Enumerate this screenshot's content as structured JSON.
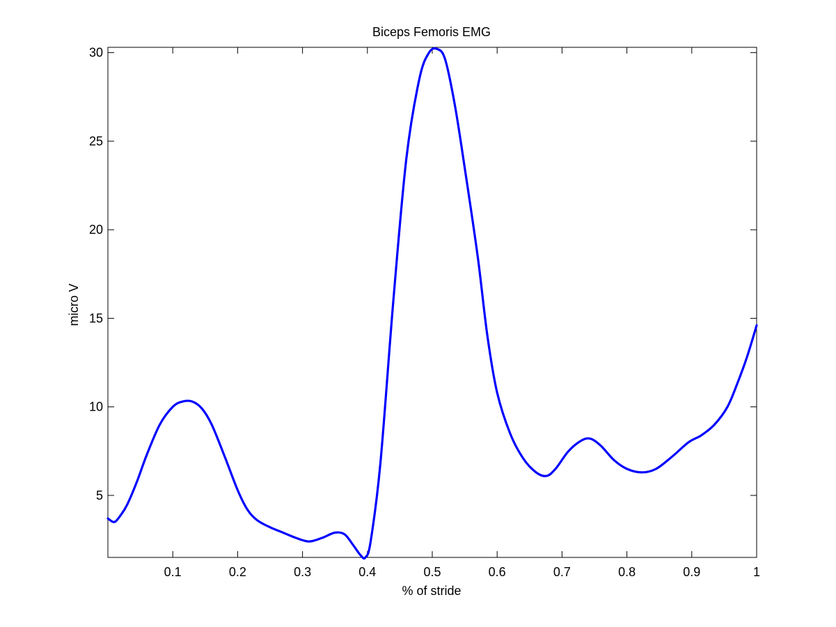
{
  "chart_data": {
    "type": "line",
    "title": "Biceps Femoris EMG",
    "xlabel": "% of stride",
    "ylabel": "micro V",
    "xlim": [
      0,
      1
    ],
    "ylim": [
      1.5,
      30.3
    ],
    "grid": false,
    "xticks": [
      0.1,
      0.2,
      0.3,
      0.4,
      0.5,
      0.6,
      0.7,
      0.8,
      0.9,
      1
    ],
    "xtick_labels": [
      "0.1",
      "0.2",
      "0.3",
      "0.4",
      "0.5",
      "0.6",
      "0.7",
      "0.8",
      "0.9",
      "1"
    ],
    "yticks": [
      5,
      10,
      15,
      20,
      25,
      30
    ],
    "ytick_labels": [
      "5",
      "10",
      "15",
      "20",
      "25",
      "30"
    ],
    "line_color": "#0000ff",
    "series": [
      {
        "x": [
          0.0,
          0.01,
          0.02,
          0.03,
          0.045,
          0.06,
          0.08,
          0.1,
          0.115,
          0.13,
          0.145,
          0.16,
          0.18,
          0.2,
          0.215,
          0.23,
          0.25,
          0.27,
          0.29,
          0.31,
          0.33,
          0.35,
          0.365,
          0.378,
          0.39,
          0.397,
          0.405,
          0.42,
          0.44,
          0.46,
          0.48,
          0.495,
          0.508,
          0.52,
          0.535,
          0.55,
          0.57,
          0.585,
          0.6,
          0.62,
          0.64,
          0.66,
          0.676,
          0.69,
          0.71,
          0.73,
          0.744,
          0.76,
          0.78,
          0.8,
          0.823,
          0.845,
          0.87,
          0.895,
          0.915,
          0.935,
          0.955,
          0.97,
          0.985,
          1.0
        ],
        "y": [
          3.7,
          3.5,
          3.9,
          4.5,
          5.8,
          7.3,
          9.0,
          10.0,
          10.3,
          10.3,
          9.9,
          9.0,
          7.2,
          5.3,
          4.2,
          3.6,
          3.2,
          2.9,
          2.6,
          2.4,
          2.6,
          2.9,
          2.8,
          2.2,
          1.6,
          1.5,
          2.4,
          6.8,
          16.0,
          24.0,
          28.5,
          30.0,
          30.2,
          29.6,
          27.0,
          23.5,
          18.5,
          14.0,
          10.8,
          8.5,
          7.1,
          6.3,
          6.1,
          6.5,
          7.5,
          8.1,
          8.2,
          7.8,
          7.0,
          6.5,
          6.3,
          6.5,
          7.2,
          8.0,
          8.4,
          9.0,
          10.0,
          11.3,
          12.8,
          14.6
        ]
      }
    ]
  }
}
